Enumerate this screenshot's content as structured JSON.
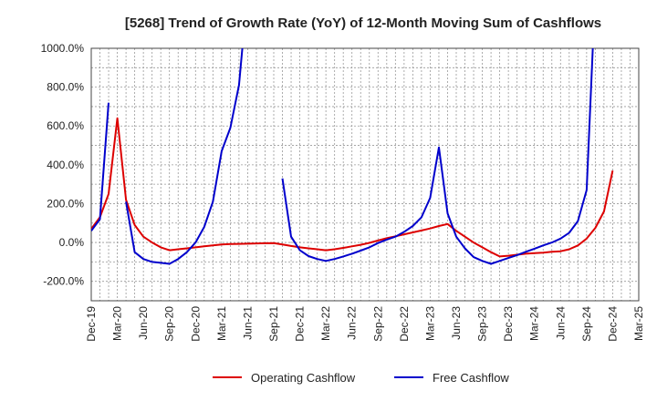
{
  "chart_data": {
    "type": "line",
    "title": "[5268]  Trend of Growth Rate (YoY) of 12-Month Moving Sum of Cashflows",
    "xlabel": "",
    "ylabel": "",
    "ylim": [
      -300,
      1000
    ],
    "y_ticks": [
      -200,
      0,
      200,
      400,
      600,
      800,
      1000
    ],
    "y_tick_labels": [
      "-200.0%",
      "0.0%",
      "200.0%",
      "400.0%",
      "600.0%",
      "800.0%",
      "1000.0%"
    ],
    "x_tick_labels": [
      "Dec-19",
      "Mar-20",
      "Jun-20",
      "Sep-20",
      "Dec-20",
      "Mar-21",
      "Jun-21",
      "Sep-21",
      "Dec-21",
      "Mar-22",
      "Jun-22",
      "Sep-22",
      "Dec-22",
      "Mar-23",
      "Jun-23",
      "Sep-23",
      "Dec-23",
      "Mar-24",
      "Jun-24",
      "Sep-24",
      "Dec-24",
      "Mar-25"
    ],
    "x": [
      "Dec-19",
      "Jan-20",
      "Feb-20",
      "Mar-20",
      "Apr-20",
      "May-20",
      "Jun-20",
      "Jul-20",
      "Aug-20",
      "Sep-20",
      "Oct-20",
      "Nov-20",
      "Dec-20",
      "Jan-21",
      "Feb-21",
      "Mar-21",
      "Apr-21",
      "May-21",
      "Jun-21",
      "Jul-21",
      "Aug-21",
      "Sep-21",
      "Oct-21",
      "Nov-21",
      "Dec-21",
      "Jan-22",
      "Feb-22",
      "Mar-22",
      "Apr-22",
      "May-22",
      "Jun-22",
      "Jul-22",
      "Aug-22",
      "Sep-22",
      "Oct-22",
      "Nov-22",
      "Dec-22",
      "Jan-23",
      "Feb-23",
      "Mar-23",
      "Apr-23",
      "May-23",
      "Jun-23",
      "Jul-23",
      "Aug-23",
      "Sep-23",
      "Oct-23",
      "Nov-23",
      "Dec-23",
      "Jan-24",
      "Feb-24",
      "Mar-24",
      "Apr-24",
      "May-24",
      "Jun-24",
      "Jul-24",
      "Aug-24",
      "Sep-24",
      "Oct-24",
      "Nov-24",
      "Dec-24",
      "Jan-25",
      "Feb-25",
      "Mar-25"
    ],
    "grid": true,
    "legend_position": "bottom",
    "series": [
      {
        "name": "Operating Cashflow",
        "color": "#dd0000",
        "values": [
          70,
          130,
          250,
          640,
          220,
          90,
          30,
          0,
          -25,
          -40,
          -35,
          -30,
          -25,
          -20,
          -15,
          -10,
          -8,
          -7,
          -6,
          -5,
          -4,
          -3,
          -10,
          -18,
          -25,
          -30,
          -35,
          -40,
          -35,
          -28,
          -20,
          -12,
          -2,
          10,
          22,
          32,
          42,
          52,
          62,
          72,
          85,
          95,
          60,
          30,
          0,
          -25,
          -50,
          -72,
          -68,
          -63,
          -58,
          -55,
          -52,
          -48,
          -45,
          -35,
          -15,
          20,
          75,
          160,
          370,
          null,
          null,
          null
        ]
      },
      {
        "name": "Free Cashflow",
        "color": "#0000cc",
        "values": [
          60,
          120,
          720,
          null,
          210,
          -50,
          -85,
          -100,
          -105,
          -110,
          -85,
          -50,
          0,
          80,
          210,
          470,
          590,
          810,
          1300,
          null,
          null,
          null,
          330,
          30,
          -40,
          -70,
          -85,
          -95,
          -85,
          -72,
          -58,
          -42,
          -25,
          -3,
          15,
          30,
          55,
          85,
          130,
          230,
          490,
          150,
          30,
          -30,
          -75,
          -95,
          -110,
          -95,
          -80,
          -65,
          -48,
          -32,
          -15,
          0,
          20,
          50,
          110,
          270,
          1300,
          null,
          null,
          null,
          null,
          null
        ]
      }
    ]
  }
}
